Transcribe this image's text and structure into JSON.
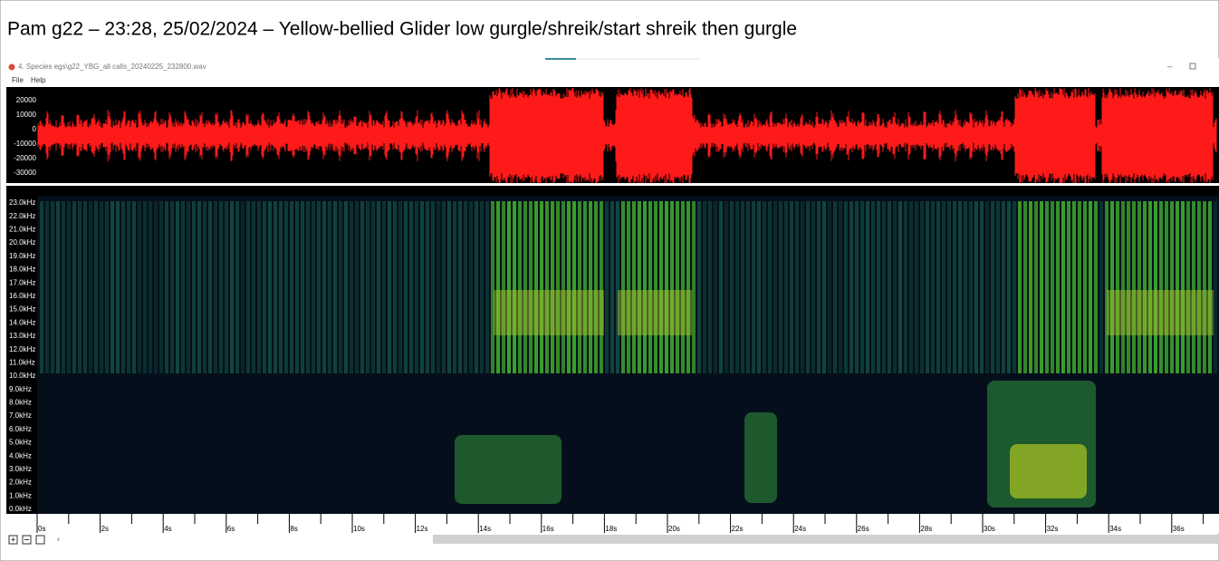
{
  "header": {
    "title": "Pam g22 – 23:28, 25/02/2024 – Yellow-bellied Glider low gurgle/shreik/start shreik then gurgle"
  },
  "window": {
    "title": "4. Species egs\\g22_YBG_all calls_20240225_232800.wav",
    "menu": [
      "File",
      "Help"
    ]
  },
  "waveform": {
    "amplitude_labels": [
      "20000",
      "10000",
      "0",
      "-10000",
      "-20000",
      "-30000"
    ]
  },
  "spectrogram": {
    "frequency_labels": [
      "23.0kHz",
      "22.0kHz",
      "21.0kHz",
      "20.0kHz",
      "19.0kHz",
      "18.0kHz",
      "17.0kHz",
      "16.0kHz",
      "15.0kHz",
      "14.0kHz",
      "13.0kHz",
      "12.0kHz",
      "11.0kHz",
      "10.0kHz",
      "9.0kHz",
      "8.0kHz",
      "7.0kHz",
      "6.0kHz",
      "5.0kHz",
      "4.0kHz",
      "3.0kHz",
      "2.0kHz",
      "1.0kHz",
      "0.0kHz"
    ]
  },
  "timeline": {
    "time_labels": [
      "0s",
      "2s",
      "4s",
      "6s",
      "8s",
      "10s",
      "12s",
      "14s",
      "16s",
      "18s",
      "20s",
      "22s",
      "24s",
      "26s",
      "28s",
      "30s",
      "32s",
      "34s",
      "36s"
    ]
  }
}
